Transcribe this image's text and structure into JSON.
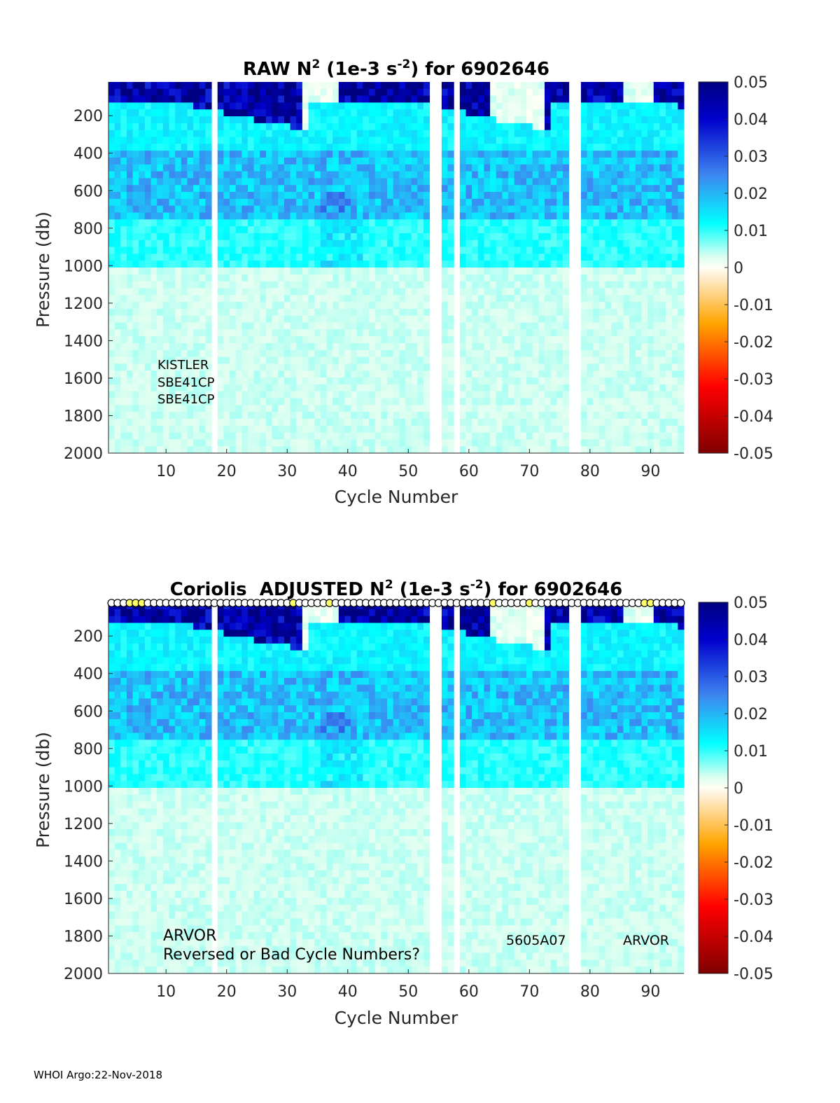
{
  "footer": "WHOI Argo:22-Nov-2018",
  "chart_data": [
    {
      "type": "heatmap",
      "id": "raw",
      "title_prefix": "RAW N",
      "title_sup1": "2",
      "title_mid": " (1e-3 s",
      "title_sup2": "-2",
      "title_suffix": ") for 6902646",
      "xlabel": "Cycle Number",
      "ylabel": "Pressure (db)",
      "xlim": [
        1,
        95
      ],
      "ylim": [
        2000,
        20
      ],
      "y_reversed": true,
      "xticks": [
        10,
        20,
        30,
        40,
        50,
        60,
        70,
        80,
        90
      ],
      "yticks": [
        200,
        400,
        600,
        800,
        1000,
        1200,
        1400,
        1600,
        1800,
        2000
      ],
      "clim": [
        -0.05,
        0.05
      ],
      "colorbar_ticks": [
        "0.05",
        "0.04",
        "0.03",
        "0.02",
        "0.01",
        "0",
        "-0.01",
        "-0.02",
        "-0.03",
        "-0.04",
        "-0.05"
      ],
      "colormap": [
        "#7f0000",
        "#ff0000",
        "#ffa500",
        "#fffff0",
        "#e0ffe8",
        "#00ffff",
        "#3d85f0",
        "#0000cd",
        "#000080"
      ],
      "annotations": [
        "KISTLER",
        "SBE41CP",
        "SBE41CP"
      ],
      "missing_cycles": [
        18,
        54,
        55,
        58,
        77,
        78
      ],
      "structure": {
        "surface_layer_peak_N2": 0.05,
        "thermocline_depth_db": [
          450,
          700
        ],
        "thermocline_N2": 0.02,
        "deep_N2": 0.003,
        "weak_stratification_cycles": [
          [
            33,
            38
          ],
          [
            64,
            72
          ],
          [
            86,
            90
          ]
        ]
      }
    },
    {
      "type": "heatmap",
      "id": "adjusted",
      "title_prefix": "Coriolis  ADJUSTED N",
      "title_sup1": "2",
      "title_mid": " (1e-3 s",
      "title_sup2": "-2",
      "title_suffix": ") for 6902646",
      "xlabel": "Cycle Number",
      "ylabel": "Pressure (db)",
      "xlim": [
        1,
        95
      ],
      "ylim": [
        2000,
        20
      ],
      "y_reversed": true,
      "xticks": [
        10,
        20,
        30,
        40,
        50,
        60,
        70,
        80,
        90
      ],
      "yticks": [
        200,
        400,
        600,
        800,
        1000,
        1200,
        1400,
        1600,
        1800,
        2000
      ],
      "clim": [
        -0.05,
        0.05
      ],
      "colorbar_ticks": [
        "0.05",
        "0.04",
        "0.03",
        "0.02",
        "0.01",
        "0",
        "-0.01",
        "-0.02",
        "-0.03",
        "-0.04",
        "-0.05"
      ],
      "colormap": [
        "#7f0000",
        "#ff0000",
        "#ffa500",
        "#fffff0",
        "#e0ffe8",
        "#00ffff",
        "#3d85f0",
        "#0000cd",
        "#000080"
      ],
      "annotations_left": [
        "ARVOR",
        "Reversed or Bad Cycle Numbers?"
      ],
      "annotation_mid": "5605A07",
      "annotation_right": "ARVOR",
      "cycle_markers": "circles along the surface for every cycle, yellow-filled on cycles 4-6, 31, 37, 64, 70, 89-90",
      "missing_cycles": [
        18,
        54,
        55,
        58,
        77,
        78
      ]
    }
  ]
}
